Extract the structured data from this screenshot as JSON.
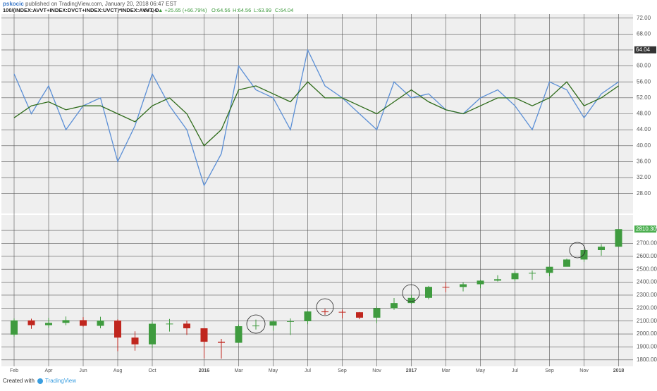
{
  "header": {
    "author": "pskocic",
    "published": "published on TradingView.com, January 20, 2018 06:47 EST",
    "symbol": "100/(INDEX:AVVT+INDEX:DVCT+INDEX:UVCT)*INDEX:AVVT, D",
    "last": "64.04",
    "change": "▲ +25.65 (+66.79%)",
    "open": "O:64.56",
    "high": "H:64.56",
    "low": "L:63.99",
    "close": "C:64.04"
  },
  "footer": {
    "created": "Created with",
    "brand": "TradingView"
  },
  "chart_data": [
    {
      "type": "line",
      "ylim": [
        23,
        73
      ],
      "yticks": [
        {
          "value": 28,
          "label": "28.00"
        },
        {
          "value": 32,
          "label": "32.00"
        },
        {
          "value": 36,
          "label": "36.00"
        },
        {
          "value": 40,
          "label": "40.00"
        },
        {
          "value": 44,
          "label": "44.00"
        },
        {
          "value": 48,
          "label": "48.00"
        },
        {
          "value": 52,
          "label": "52.00"
        },
        {
          "value": 56,
          "label": "56.00"
        },
        {
          "value": 60,
          "label": "60.00"
        },
        {
          "value": 64,
          "label": "64.00"
        },
        {
          "value": 68,
          "label": "68.00"
        },
        {
          "value": 72,
          "label": "72.00"
        }
      ],
      "last_value": 64.04,
      "last_value_color": "#333333",
      "series": [
        {
          "color": "#5b8fd6",
          "values": [
            58,
            48,
            55,
            44,
            50,
            52,
            36,
            45,
            58,
            50,
            44,
            30,
            38,
            60,
            54,
            52,
            44,
            64,
            55,
            52,
            48,
            44,
            56,
            52,
            53,
            49,
            48,
            52,
            54,
            50,
            44,
            56,
            54,
            47,
            53,
            56
          ]
        },
        {
          "color": "#2e6b1a",
          "values": [
            47,
            50,
            51,
            49,
            50,
            50,
            48,
            46,
            50,
            52,
            48,
            40,
            44,
            54,
            55,
            53,
            51,
            56,
            52,
            52,
            50,
            48,
            51,
            54,
            51,
            49,
            48,
            50,
            52,
            52,
            50,
            52,
            56,
            50,
            52,
            55
          ]
        }
      ]
    },
    {
      "type": "candlestick",
      "ylim": [
        1750,
        2920
      ],
      "yticks": [
        {
          "value": 1800,
          "label": "1800.00"
        },
        {
          "value": 1900,
          "label": "1900.00"
        },
        {
          "value": 2000,
          "label": "2000.00"
        },
        {
          "value": 2100,
          "label": "2100.00"
        },
        {
          "value": 2200,
          "label": "2200.00"
        },
        {
          "value": 2300,
          "label": "2300.00"
        },
        {
          "value": 2400,
          "label": "2400.00"
        },
        {
          "value": 2500,
          "label": "2500.00"
        },
        {
          "value": 2600,
          "label": "2600.00"
        },
        {
          "value": 2700,
          "label": "2700.00"
        },
        {
          "value": 2800,
          "label": "2800.00"
        }
      ],
      "last_value": {
        "value": 2810.3,
        "label": "2810.30"
      },
      "last_value_color": "#4caf50",
      "up_color": "#3f9b3f",
      "down_color": "#c0261e",
      "categories": [
        "Feb",
        null,
        "Apr",
        null,
        "Jun",
        null,
        "Aug",
        null,
        "Oct",
        null,
        null,
        "2016",
        null,
        "Mar",
        null,
        "May",
        null,
        "Jul",
        null,
        "Sep",
        null,
        "Nov",
        null,
        "2017",
        null,
        "Mar",
        null,
        "May",
        null,
        "Jul",
        null,
        "Sep",
        null,
        "Nov",
        null,
        "2018"
      ],
      "open": [
        1995,
        2105,
        2068,
        2086,
        2107,
        2063,
        2104,
        1972,
        1920,
        2079,
        2080,
        2044,
        1940,
        1932,
        2060,
        2065,
        2097,
        2099,
        2174,
        2171,
        2168,
        2126,
        2199,
        2239,
        2279,
        2364,
        2363,
        2384,
        2412,
        2423,
        2470,
        2472,
        2519,
        2575,
        2648,
        2674
      ],
      "high": [
        2120,
        2118,
        2125,
        2135,
        2130,
        2133,
        2113,
        2021,
        2094,
        2116,
        2104,
        2044,
        1962,
        2073,
        2111,
        2103,
        2120,
        2178,
        2194,
        2188,
        2170,
        2214,
        2278,
        2301,
        2371,
        2401,
        2398,
        2418,
        2454,
        2484,
        2491,
        2519,
        2582,
        2657,
        2694,
        2810
      ],
      "low": [
        1980,
        2040,
        2048,
        2068,
        2056,
        2044,
        1867,
        1871,
        1893,
        2019,
        1993,
        1812,
        1810,
        1931,
        2034,
        2025,
        1992,
        2075,
        2147,
        2120,
        2114,
        2083,
        2187,
        2233,
        2267,
        2322,
        2329,
        2353,
        2405,
        2407,
        2418,
        2446,
        2520,
        2557,
        2605,
        2682
      ],
      "close": [
        2105,
        2068,
        2086,
        2107,
        2063,
        2104,
        1972,
        1920,
        2079,
        2080,
        2044,
        1940,
        1932,
        2060,
        2065,
        2097,
        2099,
        2174,
        2171,
        2168,
        2126,
        2199,
        2239,
        2279,
        2364,
        2363,
        2384,
        2412,
        2423,
        2470,
        2472,
        2519,
        2575,
        2648,
        2674,
        2810
      ]
    }
  ]
}
